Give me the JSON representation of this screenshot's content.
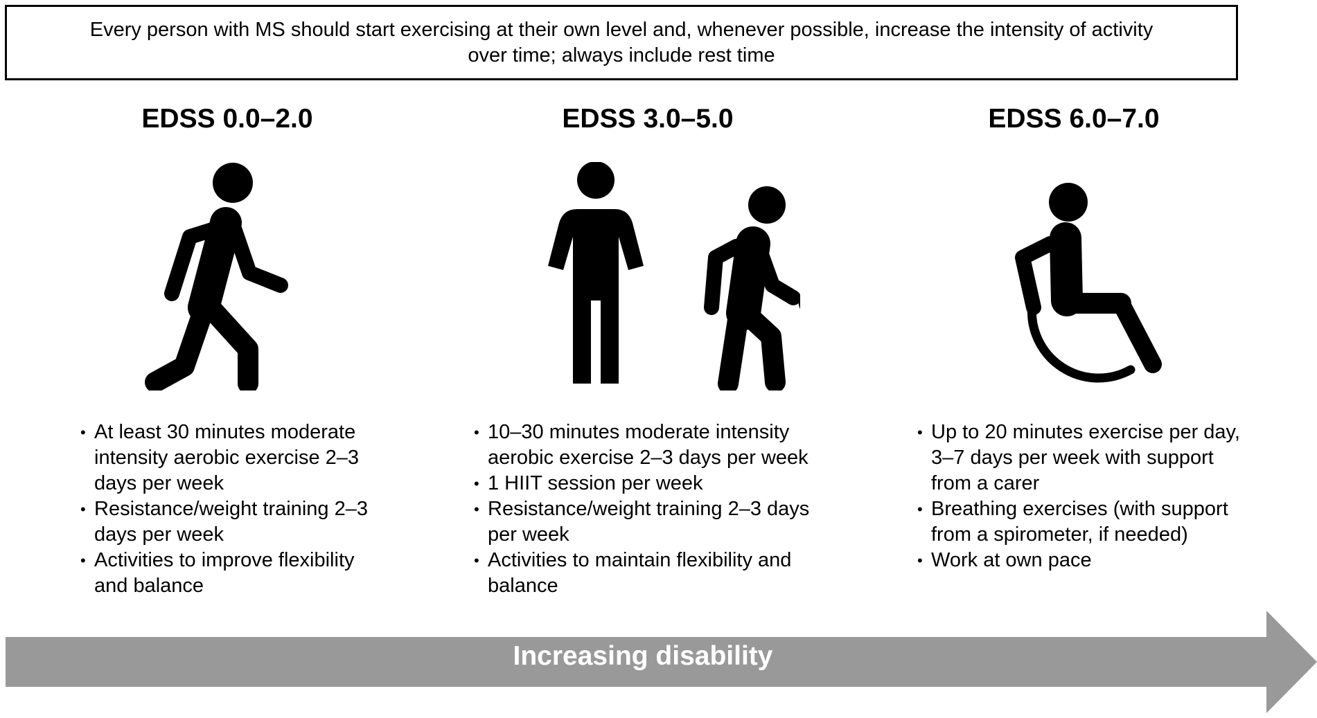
{
  "banner": {
    "text": "Every person with MS should start exercising at their own level and, whenever possible, increase the intensity of activity over time; always include rest time"
  },
  "columns": [
    {
      "title": "EDSS 0.0–2.0",
      "icon": "walking-person-icon",
      "bullets": [
        "At least 30 minutes moderate intensity aerobic exercise 2–3 days per week",
        "Resistance/weight training 2–3 days per week",
        "Activities to improve flexibility and balance"
      ]
    },
    {
      "title": "EDSS 3.0–5.0",
      "icon": "standing-person-and-person-with-cane-icon",
      "bullets": [
        "10–30 minutes moderate intensity aerobic exercise 2–3 days per week",
        "1 HIIT session per week",
        "Resistance/weight training 2–3 days per week",
        "Activities to maintain flexibility and balance"
      ]
    },
    {
      "title": "EDSS 6.0–7.0",
      "icon": "wheelchair-user-icon",
      "bullets": [
        "Up to 20 minutes exercise per day, 3–7 days per week with support from a carer",
        "Breathing exercises (with support from a spirometer, if needed)",
        "Work at own pace"
      ]
    }
  ],
  "arrow": {
    "label": "Increasing disability",
    "color": "#999999"
  }
}
